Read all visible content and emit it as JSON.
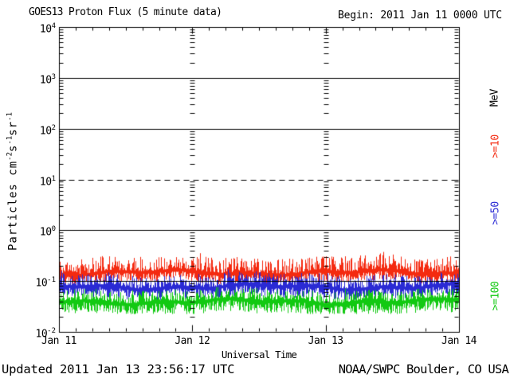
{
  "header": {
    "title": "GOES13 Proton Flux (5 minute data)",
    "begin": "Begin: 2011 Jan 11 0000 UTC"
  },
  "footer": {
    "updated": "Updated 2011 Jan 13 23:56:17 UTC",
    "credit": "NOAA/SWPC Boulder, CO USA"
  },
  "chart_data": {
    "type": "line",
    "title": "GOES13 Proton Flux (5 minute data)",
    "begin": "Begin: 2011 Jan 11 0000 UTC",
    "xlabel": "Universal Time",
    "ylabel_parts": [
      [
        "t",
        "Particles cm"
      ],
      [
        "sup",
        "-2"
      ],
      [
        "t",
        "s"
      ],
      [
        "sup",
        "-1"
      ],
      [
        "t",
        "sr"
      ],
      [
        "sup",
        "-1"
      ]
    ],
    "y_scale": "log",
    "ylim": [
      0.01,
      10000
    ],
    "y_tick_exponents": [
      4,
      3,
      2,
      1,
      0,
      -1,
      -2
    ],
    "x_ticks": [
      "Jan 11",
      "Jan 12",
      "Jan 13",
      "Jan 14"
    ],
    "x_range_days": 3,
    "x_minor_tick_hours": 3,
    "gridlines": {
      "solid_exponents": [
        3,
        2,
        0,
        -1
      ],
      "dashed_exponents": [
        1
      ],
      "interior_day_tick_columns": [
        1,
        2
      ]
    },
    "right_axis_unit": "MeV",
    "series": [
      {
        "label": ">=10",
        "energy": ">=10 MeV",
        "color": "#f42a10",
        "approx_flux_min": 0.08,
        "approx_flux_median": 0.14,
        "approx_flux_max": 0.3,
        "log_center": -0.84,
        "log_hi_amp": 0.3,
        "log_lo_amp": 0.17,
        "floor_log": -1.06,
        "spike_prob": 0.05,
        "seed": 11
      },
      {
        "label": ">=50",
        "energy": ">=50 MeV",
        "color": "#2a2ad4",
        "approx_flux_min": 0.045,
        "approx_flux_median": 0.07,
        "approx_flux_max": 0.14,
        "log_center": -1.12,
        "log_hi_amp": 0.24,
        "log_lo_amp": 0.2,
        "floor_log": -1.38,
        "spike_prob": 0.03,
        "seed": 52
      },
      {
        "label": ">=100",
        "energy": ">=100 MeV",
        "color": "#12c912",
        "approx_flux_min": 0.022,
        "approx_flux_median": 0.04,
        "approx_flux_max": 0.07,
        "log_center": -1.41,
        "log_hi_amp": 0.22,
        "log_lo_amp": 0.22,
        "floor_log": -1.65,
        "spike_prob": 0.03,
        "seed": 103
      }
    ]
  }
}
